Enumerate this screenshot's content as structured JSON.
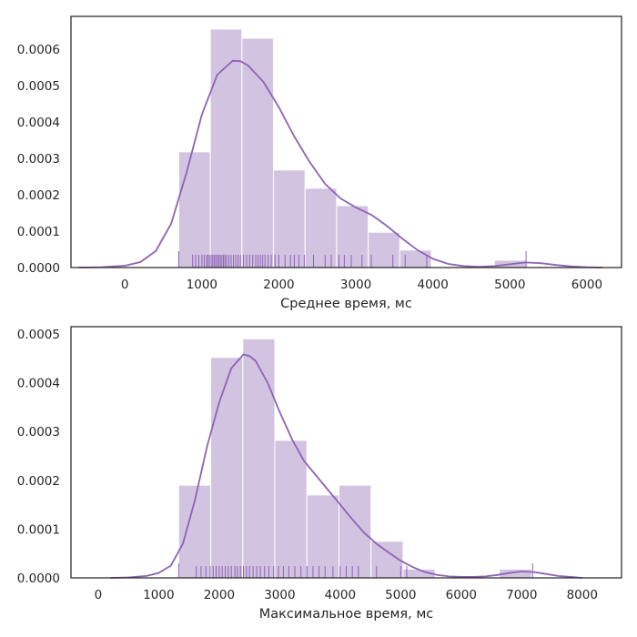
{
  "colors": {
    "bar_fill": "#d2c3e1",
    "line": "#8c64b4",
    "frame": "#262626"
  },
  "chart_data": [
    {
      "type": "histogram",
      "xlabel": "Среднее время, мс",
      "xlim": [
        -700,
        6450
      ],
      "ylim": [
        0,
        0.00069
      ],
      "xticks": [
        0,
        1000,
        2000,
        3000,
        4000,
        5000,
        6000
      ],
      "yticks": [
        0,
        0.0001,
        0.0002,
        0.0003,
        0.0004,
        0.0005,
        0.0006
      ],
      "ytick_labels": [
        "0.0000",
        "0.0001",
        "0.0002",
        "0.0003",
        "0.0004",
        "0.0005",
        "0.0006"
      ],
      "bins": [
        {
          "x0": 700,
          "x1": 1110,
          "value": 0.000318
        },
        {
          "x0": 1110,
          "x1": 1520,
          "value": 0.000655
        },
        {
          "x0": 1520,
          "x1": 1930,
          "value": 0.00063
        },
        {
          "x0": 1930,
          "x1": 2340,
          "value": 0.000268
        },
        {
          "x0": 2340,
          "x1": 2750,
          "value": 0.000218
        },
        {
          "x0": 2750,
          "x1": 3160,
          "value": 0.00017
        },
        {
          "x0": 3160,
          "x1": 3570,
          "value": 9.7e-05
        },
        {
          "x0": 3570,
          "x1": 3980,
          "value": 4.8e-05
        },
        {
          "x0": 4800,
          "x1": 5210,
          "value": 2e-05
        }
      ],
      "kde": {
        "x": [
          -600,
          -300,
          0,
          200,
          400,
          600,
          800,
          1000,
          1200,
          1400,
          1500,
          1600,
          1800,
          2000,
          2200,
          2400,
          2600,
          2800,
          3000,
          3200,
          3400,
          3600,
          3800,
          4000,
          4200,
          4400,
          4600,
          4800,
          5000,
          5200,
          5400,
          5600,
          5800,
          6000,
          6200
        ],
        "y": [
          0.0,
          1e-06,
          5e-06,
          1.5e-05,
          4.5e-05,
          0.00012,
          0.00026,
          0.00042,
          0.00053,
          0.000568,
          0.000567,
          0.000555,
          0.00051,
          0.00044,
          0.00036,
          0.00029,
          0.00023,
          0.00019,
          0.000165,
          0.000145,
          0.000115,
          8e-05,
          4.8e-05,
          2.4e-05,
          1e-05,
          4e-06,
          2e-06,
          4e-06,
          9e-06,
          1.4e-05,
          1.2e-05,
          7e-06,
          3e-06,
          1e-06,
          0.0
        ]
      },
      "rug": [
        700,
        880,
        920,
        960,
        1000,
        1030,
        1060,
        1080,
        1100,
        1120,
        1140,
        1160,
        1180,
        1200,
        1220,
        1240,
        1260,
        1280,
        1300,
        1320,
        1350,
        1380,
        1410,
        1440,
        1470,
        1500,
        1540,
        1580,
        1620,
        1660,
        1700,
        1730,
        1760,
        1790,
        1820,
        1860,
        1900,
        1950,
        2000,
        2080,
        2150,
        2200,
        2260,
        2330,
        2450,
        2600,
        2680,
        2780,
        2850,
        2940,
        3080,
        3200,
        3480,
        3640,
        3920,
        5210
      ]
    },
    {
      "type": "histogram",
      "xlabel": "Максимальное время, мс",
      "xlim": [
        -450,
        8650
      ],
      "ylim": [
        0,
        0.000515
      ],
      "xticks": [
        0,
        1000,
        2000,
        3000,
        4000,
        5000,
        6000,
        7000,
        8000
      ],
      "yticks": [
        0,
        0.0001,
        0.0002,
        0.0003,
        0.0004,
        0.0005
      ],
      "ytick_labels": [
        "0.0000",
        "0.0001",
        "0.0002",
        "0.0003",
        "0.0004",
        "0.0005"
      ],
      "bins": [
        {
          "x0": 1330,
          "x1": 1860,
          "value": 0.00019
        },
        {
          "x0": 1860,
          "x1": 2390,
          "value": 0.000452
        },
        {
          "x0": 2390,
          "x1": 2920,
          "value": 0.00049
        },
        {
          "x0": 2920,
          "x1": 3450,
          "value": 0.000282
        },
        {
          "x0": 3450,
          "x1": 3980,
          "value": 0.00017
        },
        {
          "x0": 3980,
          "x1": 4510,
          "value": 0.00019
        },
        {
          "x0": 4510,
          "x1": 5040,
          "value": 7.5e-05
        },
        {
          "x0": 5040,
          "x1": 5570,
          "value": 1.8e-05
        },
        {
          "x0": 6630,
          "x1": 7160,
          "value": 1.8e-05
        }
      ],
      "kde": {
        "x": [
          200,
          500,
          800,
          1000,
          1200,
          1400,
          1600,
          1800,
          2000,
          2200,
          2400,
          2500,
          2600,
          2800,
          3000,
          3200,
          3400,
          3600,
          3800,
          4000,
          4200,
          4400,
          4600,
          4800,
          5000,
          5200,
          5400,
          5600,
          5800,
          6000,
          6200,
          6400,
          6600,
          6800,
          7000,
          7200,
          7400,
          7600,
          7800,
          8000
        ],
        "y": [
          0.0,
          1e-06,
          4e-06,
          1e-05,
          2.5e-05,
          7e-05,
          0.00016,
          0.00027,
          0.00036,
          0.00043,
          0.000458,
          0.000455,
          0.000445,
          0.0004,
          0.00034,
          0.000285,
          0.00024,
          0.00021,
          0.00018,
          0.00015,
          0.00012,
          9.2e-05,
          7e-05,
          5.2e-05,
          3.5e-05,
          2.2e-05,
          1.2e-05,
          6e-06,
          3e-06,
          2e-06,
          2e-06,
          3e-06,
          6e-06,
          1e-05,
          1.3e-05,
          1.2e-05,
          8e-06,
          4e-06,
          2e-06,
          0.0
        ]
      },
      "rug": [
        1330,
        1620,
        1700,
        1780,
        1850,
        1900,
        1950,
        2000,
        2050,
        2100,
        2150,
        2200,
        2260,
        2300,
        2350,
        2400,
        2450,
        2500,
        2560,
        2620,
        2680,
        2750,
        2820,
        2900,
        2980,
        3060,
        3150,
        3250,
        3350,
        3450,
        3550,
        3650,
        3750,
        3880,
        4000,
        4100,
        4200,
        4300,
        4600,
        5000,
        5100,
        7180
      ]
    }
  ]
}
